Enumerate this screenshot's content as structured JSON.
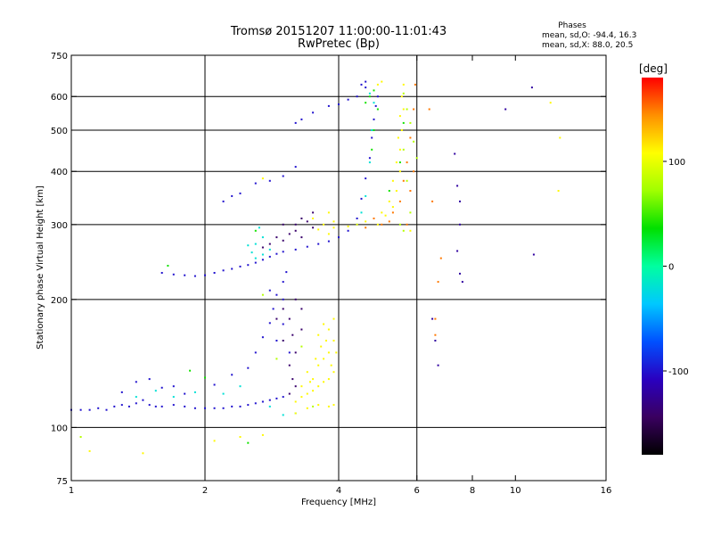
{
  "chart_data": {
    "type": "scatter",
    "title": "Tromsø 20151207 11:00:00-11:01:43",
    "subtitle": "RwPretec (Bp)",
    "xlabel": "Frequency [MHz]",
    "ylabel": "Stationary phase Virtual Height [km]",
    "x_scale": "log",
    "y_scale": "log",
    "xlim": [
      1,
      16
    ],
    "ylim": [
      75,
      750
    ],
    "x_ticks": [
      1,
      2,
      4,
      6,
      8,
      10,
      16
    ],
    "x_tick_labels": [
      "1",
      "2",
      "4",
      "6",
      "8",
      "10",
      "16"
    ],
    "x_gridlines": [
      2,
      4,
      6
    ],
    "y_ticks": [
      75,
      100,
      200,
      300,
      400,
      500,
      600,
      750
    ],
    "y_tick_labels": [
      "75",
      "100",
      "200",
      "300",
      "400",
      "500",
      "600",
      "750"
    ],
    "y_gridlines": [
      100,
      200,
      300,
      400,
      500,
      600
    ],
    "grid": true,
    "stats": {
      "heading": "Phases",
      "o_line": "mean, sd,O: -94.4, 16.3",
      "x_line": "mean, sd,X:  88.0, 20.5"
    },
    "colorbar": {
      "label": "[deg]",
      "min": -180,
      "max": 180,
      "ticks": [
        100,
        0,
        -100
      ],
      "tick_labels": [
        "100",
        "0",
        "-100"
      ],
      "colors": [
        "#000000",
        "#3a0060",
        "#2a00c0",
        "#0050ff",
        "#00c8ff",
        "#00ffa0",
        "#00e000",
        "#a0ff00",
        "#ffff00",
        "#ff9000",
        "#ff0000"
      ]
    },
    "series": [
      {
        "phase_deg": -100,
        "points": [
          [
            1.0,
            110
          ],
          [
            1.05,
            110
          ],
          [
            1.1,
            110
          ],
          [
            1.15,
            111
          ],
          [
            1.2,
            110
          ],
          [
            1.25,
            112
          ],
          [
            1.3,
            113
          ],
          [
            1.35,
            112
          ],
          [
            1.4,
            114
          ],
          [
            1.45,
            116
          ],
          [
            1.5,
            113
          ],
          [
            1.55,
            112
          ],
          [
            1.6,
            112
          ],
          [
            1.7,
            113
          ],
          [
            1.8,
            112
          ],
          [
            1.9,
            111
          ],
          [
            2.0,
            111
          ],
          [
            2.1,
            111
          ],
          [
            2.2,
            111
          ],
          [
            2.3,
            112
          ],
          [
            2.4,
            112
          ],
          [
            2.5,
            113
          ],
          [
            2.6,
            114
          ],
          [
            2.7,
            115
          ],
          [
            2.8,
            116
          ],
          [
            2.9,
            117
          ],
          [
            3.0,
            118
          ],
          [
            1.3,
            121
          ],
          [
            1.4,
            128
          ],
          [
            1.5,
            130
          ],
          [
            1.6,
            124
          ],
          [
            1.7,
            125
          ],
          [
            1.8,
            120
          ],
          [
            2.1,
            126
          ],
          [
            2.3,
            133
          ],
          [
            2.5,
            138
          ],
          [
            2.6,
            150
          ],
          [
            2.7,
            163
          ],
          [
            2.8,
            176
          ],
          [
            2.85,
            190
          ],
          [
            2.9,
            205
          ],
          [
            3.0,
            220
          ],
          [
            3.05,
            232
          ],
          [
            2.9,
            160
          ],
          [
            3.0,
            175
          ],
          [
            3.1,
            150
          ],
          [
            3.0,
            200
          ],
          [
            2.8,
            210
          ],
          [
            1.6,
            231
          ],
          [
            1.7,
            229
          ],
          [
            1.8,
            228
          ],
          [
            1.9,
            227
          ],
          [
            2.0,
            228
          ],
          [
            2.1,
            231
          ],
          [
            2.2,
            234
          ],
          [
            2.3,
            236
          ],
          [
            2.4,
            239
          ],
          [
            2.5,
            241
          ],
          [
            2.6,
            244
          ],
          [
            2.7,
            248
          ],
          [
            2.8,
            252
          ],
          [
            2.9,
            256
          ],
          [
            3.0,
            259
          ],
          [
            3.2,
            262
          ],
          [
            3.4,
            266
          ],
          [
            3.6,
            270
          ],
          [
            3.8,
            274
          ],
          [
            4.0,
            280
          ],
          [
            4.2,
            290
          ],
          [
            4.4,
            310
          ],
          [
            4.5,
            345
          ],
          [
            4.6,
            385
          ],
          [
            4.7,
            430
          ],
          [
            4.75,
            480
          ],
          [
            4.8,
            530
          ],
          [
            4.85,
            570
          ],
          [
            4.9,
            600
          ],
          [
            2.2,
            340
          ],
          [
            2.3,
            350
          ],
          [
            2.4,
            355
          ],
          [
            2.6,
            375
          ],
          [
            2.8,
            380
          ],
          [
            3.0,
            390
          ],
          [
            3.2,
            410
          ],
          [
            3.2,
            520
          ],
          [
            3.3,
            530
          ],
          [
            3.5,
            550
          ],
          [
            3.8,
            570
          ],
          [
            4.0,
            575
          ],
          [
            4.2,
            590
          ],
          [
            4.4,
            600
          ],
          [
            4.5,
            640
          ],
          [
            4.6,
            630
          ],
          [
            4.6,
            650
          ]
        ]
      },
      {
        "phase_deg": -140,
        "points": [
          [
            2.7,
            265
          ],
          [
            2.8,
            270
          ],
          [
            2.9,
            280
          ],
          [
            3.0,
            275
          ],
          [
            3.1,
            285
          ],
          [
            3.2,
            300
          ],
          [
            3.3,
            310
          ],
          [
            3.4,
            305
          ],
          [
            3.5,
            320
          ],
          [
            3.0,
            300
          ],
          [
            3.2,
            290
          ],
          [
            3.3,
            280
          ],
          [
            3.5,
            295
          ],
          [
            3.0,
            190
          ],
          [
            3.1,
            180
          ],
          [
            3.15,
            165
          ],
          [
            3.2,
            150
          ],
          [
            3.1,
            140
          ],
          [
            3.2,
            125
          ],
          [
            3.3,
            170
          ],
          [
            2.9,
            180
          ],
          [
            3.0,
            160
          ],
          [
            3.1,
            120
          ],
          [
            3.15,
            130
          ],
          [
            3.2,
            200
          ],
          [
            3.3,
            190
          ]
        ]
      },
      {
        "phase_deg": -20,
        "points": [
          [
            2.6,
            250
          ],
          [
            2.7,
            255
          ],
          [
            2.8,
            262
          ],
          [
            2.6,
            270
          ],
          [
            2.7,
            280
          ],
          [
            2.65,
            295
          ],
          [
            2.5,
            268
          ],
          [
            2.55,
            258
          ],
          [
            4.4,
            300
          ],
          [
            4.5,
            320
          ],
          [
            4.6,
            350
          ],
          [
            4.7,
            420
          ],
          [
            4.75,
            500
          ],
          [
            4.8,
            580
          ],
          [
            4.7,
            610
          ],
          [
            1.4,
            118
          ],
          [
            1.55,
            122
          ],
          [
            1.7,
            118
          ],
          [
            1.9,
            121
          ],
          [
            2.2,
            120
          ],
          [
            2.4,
            125
          ],
          [
            3.0,
            107
          ],
          [
            3.2,
            108
          ],
          [
            2.8,
            112
          ]
        ]
      },
      {
        "phase_deg": 110,
        "points": [
          [
            3.2,
            115
          ],
          [
            3.3,
            118
          ],
          [
            3.4,
            120
          ],
          [
            3.5,
            122
          ],
          [
            3.6,
            125
          ],
          [
            3.7,
            128
          ],
          [
            3.8,
            130
          ],
          [
            3.9,
            135
          ],
          [
            3.5,
            130
          ],
          [
            3.6,
            140
          ],
          [
            3.7,
            145
          ],
          [
            3.8,
            150
          ],
          [
            3.9,
            160
          ],
          [
            3.8,
            170
          ],
          [
            3.9,
            180
          ],
          [
            3.7,
            175
          ],
          [
            3.6,
            165
          ],
          [
            3.4,
            135
          ],
          [
            3.55,
            145
          ],
          [
            3.65,
            155
          ],
          [
            3.75,
            160
          ],
          [
            3.3,
            125
          ],
          [
            3.45,
            128
          ],
          [
            3.85,
            140
          ],
          [
            3.95,
            150
          ],
          [
            3.2,
            108
          ],
          [
            3.4,
            111
          ],
          [
            3.6,
            113
          ],
          [
            3.8,
            112
          ],
          [
            3.9,
            113
          ],
          [
            4.2,
            297
          ],
          [
            4.4,
            300
          ],
          [
            4.6,
            305
          ],
          [
            4.8,
            310
          ],
          [
            5.0,
            320
          ],
          [
            5.2,
            340
          ],
          [
            5.3,
            380
          ],
          [
            5.4,
            420
          ],
          [
            5.45,
            480
          ],
          [
            5.5,
            540
          ],
          [
            5.55,
            600
          ],
          [
            5.6,
            640
          ],
          [
            4.9,
            300
          ],
          [
            5.1,
            315
          ],
          [
            5.3,
            330
          ],
          [
            5.4,
            360
          ],
          [
            5.5,
            400
          ],
          [
            5.5,
            450
          ],
          [
            5.55,
            500
          ],
          [
            5.6,
            560
          ],
          [
            3.8,
            285
          ],
          [
            3.9,
            295
          ],
          [
            3.9,
            305
          ],
          [
            3.7,
            300
          ],
          [
            3.6,
            292
          ],
          [
            3.5,
            310
          ],
          [
            3.8,
            320
          ],
          [
            2.7,
            385
          ],
          [
            1.1,
            88
          ],
          [
            1.45,
            87
          ],
          [
            2.1,
            93
          ],
          [
            2.4,
            95
          ],
          [
            2.7,
            96
          ],
          [
            4.9,
            640
          ],
          [
            5.0,
            650
          ],
          [
            12.0,
            580
          ],
          [
            12.6,
            480
          ],
          [
            12.5,
            360
          ],
          [
            5.8,
            290
          ]
        ]
      },
      {
        "phase_deg": 40,
        "points": [
          [
            4.6,
            580
          ],
          [
            4.7,
            600
          ],
          [
            4.8,
            620
          ],
          [
            4.8,
            500
          ],
          [
            4.75,
            450
          ],
          [
            4.9,
            560
          ],
          [
            1.65,
            240
          ],
          [
            1.85,
            136
          ],
          [
            2.0,
            131
          ],
          [
            2.6,
            290
          ],
          [
            5.2,
            360
          ],
          [
            5.5,
            420
          ],
          [
            5.6,
            520
          ],
          [
            2.5,
            92
          ]
        ]
      },
      {
        "phase_deg": 150,
        "points": [
          [
            5.0,
            300
          ],
          [
            5.2,
            305
          ],
          [
            5.3,
            320
          ],
          [
            5.5,
            340
          ],
          [
            5.6,
            380
          ],
          [
            5.7,
            420
          ],
          [
            5.8,
            480
          ],
          [
            5.9,
            560
          ],
          [
            5.95,
            640
          ],
          [
            5.8,
            360
          ],
          [
            5.9,
            400
          ],
          [
            5.7,
            300
          ],
          [
            6.5,
            340
          ],
          [
            6.6,
            180
          ],
          [
            6.6,
            165
          ],
          [
            6.8,
            250
          ],
          [
            6.7,
            220
          ],
          [
            4.8,
            310
          ],
          [
            4.6,
            295
          ],
          [
            6.4,
            560
          ]
        ]
      },
      {
        "phase_deg": 80,
        "points": [
          [
            5.6,
            610
          ],
          [
            5.7,
            560
          ],
          [
            5.8,
            520
          ],
          [
            5.9,
            470
          ],
          [
            6.0,
            430
          ],
          [
            5.6,
            450
          ],
          [
            5.7,
            380
          ],
          [
            5.8,
            320
          ],
          [
            5.5,
            300
          ],
          [
            5.6,
            290
          ],
          [
            2.7,
            205
          ],
          [
            2.9,
            145
          ],
          [
            3.3,
            155
          ],
          [
            1.05,
            95
          ],
          [
            3.5,
            112
          ]
        ]
      },
      {
        "phase_deg": -120,
        "points": [
          [
            6.5,
            180
          ],
          [
            6.6,
            160
          ],
          [
            6.7,
            140
          ],
          [
            7.3,
            440
          ],
          [
            7.4,
            370
          ],
          [
            7.5,
            340
          ],
          [
            7.5,
            300
          ],
          [
            7.4,
            260
          ],
          [
            7.5,
            230
          ],
          [
            7.6,
            220
          ],
          [
            9.5,
            560
          ],
          [
            10.9,
            630
          ],
          [
            11.0,
            255
          ]
        ]
      }
    ]
  }
}
